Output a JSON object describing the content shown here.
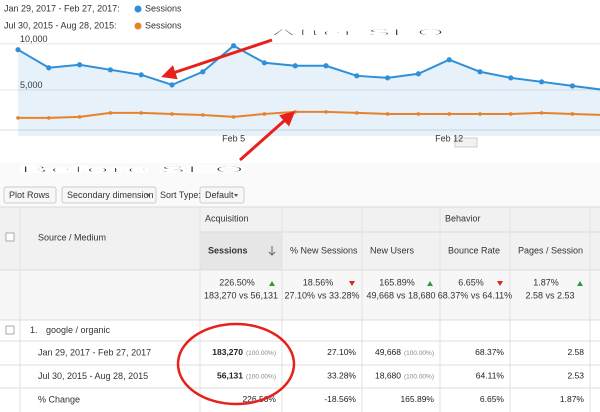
{
  "chart_data": {
    "type": "line",
    "categories": [
      null,
      null,
      null,
      null,
      null,
      null,
      null,
      "Feb 5",
      null,
      null,
      null,
      null,
      null,
      null,
      "Feb 12",
      null,
      null,
      null,
      null,
      null
    ],
    "series": [
      {
        "period": "Jan 29, 2017 - Feb 27, 2017:",
        "name": "Sessions",
        "color": "#2f8fd8",
        "values": [
          9350,
          7390,
          7720,
          7170,
          6630,
          5540,
          6960,
          9780,
          7930,
          7610,
          7610,
          6520,
          6300,
          6740,
          8260,
          6960,
          6300,
          5870,
          5430,
          5000
        ]
      },
      {
        "period": "Jul 30, 2015 - Aug 28, 2015:",
        "name": "Sessions",
        "color": "#e8822a",
        "values": [
          1960,
          1960,
          2070,
          2500,
          2500,
          2390,
          2280,
          2070,
          2390,
          2610,
          2610,
          2500,
          2390,
          2390,
          2390,
          2390,
          2390,
          2500,
          2390,
          2280
        ]
      }
    ],
    "ylim": [
      0,
      10400
    ],
    "yticks": [
      {
        "value": 5000,
        "label": "5,000"
      },
      {
        "value": 10000,
        "label": "10,000"
      }
    ],
    "grid": true
  },
  "annotations": {
    "after": "After SEO",
    "before": "Before SEO",
    "color": "#e8201c"
  },
  "toolbar": {
    "plot_rows": "Plot Rows",
    "secondary": "Secondary dimension",
    "sort_type": "Sort Type:",
    "sort_default": "Default"
  },
  "table": {
    "groups": [
      "Acquisition",
      "Behavior"
    ],
    "columns": [
      "Source / Medium",
      "Sessions",
      "% New Sessions",
      "New Users",
      "Bounce Rate",
      "Pages / Session"
    ],
    "summary": [
      {
        "value": "226.50%",
        "compare": "183,270 vs 56,131",
        "arrow": "up"
      },
      {
        "value": "18.56%",
        "compare": "27.10% vs 33.28%",
        "arrow": "down"
      },
      {
        "value": "165.89%",
        "compare": "49,668 vs 18,680",
        "arrow": "up"
      },
      {
        "value": "6.65%",
        "compare": "68.37% vs 64.11%",
        "arrow": "down"
      },
      {
        "value": "1.87%",
        "compare": "2.58 vs 2.53",
        "arrow": "up"
      }
    ],
    "group_row": {
      "index": "1.",
      "label": "google / organic"
    },
    "rows": [
      {
        "label": "Jan 29, 2017 - Feb 27, 2017",
        "cells": [
          [
            "183,270",
            "(100.00%)"
          ],
          [
            "27.10%"
          ],
          [
            "49,668",
            "(100.00%)"
          ],
          [
            "68.37%"
          ],
          [
            "2.58"
          ]
        ]
      },
      {
        "label": "Jul 30, 2015 - Aug 28, 2015",
        "cells": [
          [
            "56,131",
            "(100.00%)"
          ],
          [
            "33.28%"
          ],
          [
            "18,680",
            "(100.00%)"
          ],
          [
            "64.11%"
          ],
          [
            "2.53"
          ]
        ]
      },
      {
        "label": "% Change",
        "cells": [
          [
            "226.50%"
          ],
          [
            "-18.56%"
          ],
          [
            "165.89%"
          ],
          [
            "6.65%"
          ],
          [
            "1.87%"
          ]
        ]
      }
    ]
  }
}
